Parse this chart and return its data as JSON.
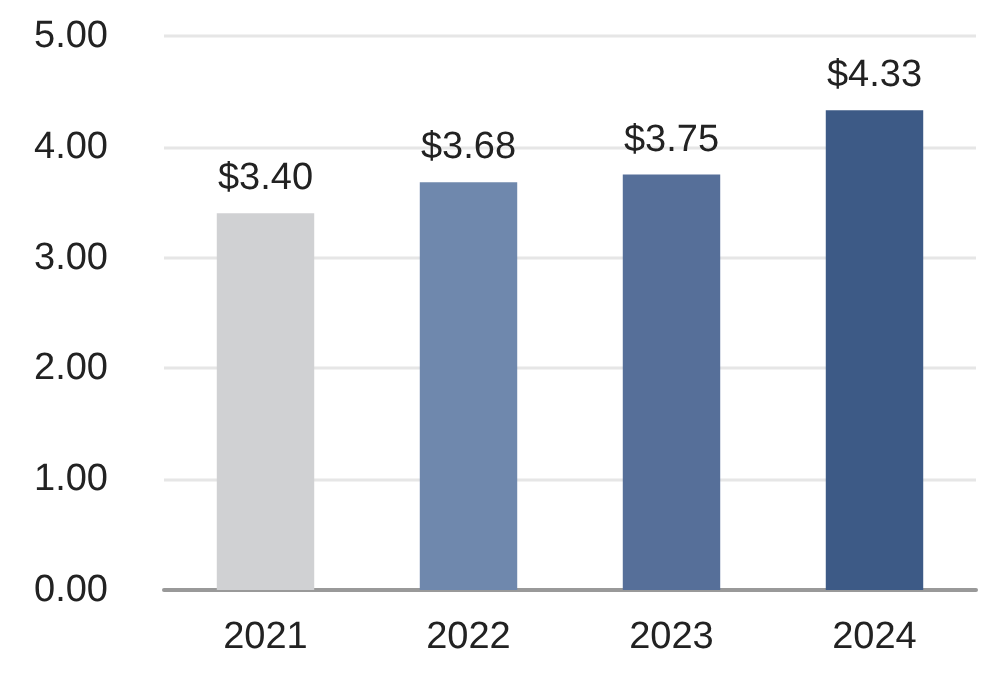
{
  "chart_data": {
    "type": "bar",
    "categories": [
      "2021",
      "2022",
      "2023",
      "2024"
    ],
    "values": [
      3.4,
      3.68,
      3.75,
      4.33
    ],
    "colors": [
      "#d0d1d3",
      "#6f88ad",
      "#566f99",
      "#3d5a86"
    ],
    "value_labels": [
      "$3.40",
      "$3.68",
      "$3.75",
      "$4.33"
    ],
    "ylim": [
      0,
      5
    ],
    "yticks": [
      {
        "value": 0,
        "label": "0.00"
      },
      {
        "value": 1,
        "label": "1.00"
      },
      {
        "value": 2,
        "label": "2.00"
      },
      {
        "value": 3,
        "label": "3.00"
      },
      {
        "value": 4,
        "label": "4.00"
      },
      {
        "value": 5,
        "label": "5.00"
      }
    ],
    "grid": "y"
  }
}
